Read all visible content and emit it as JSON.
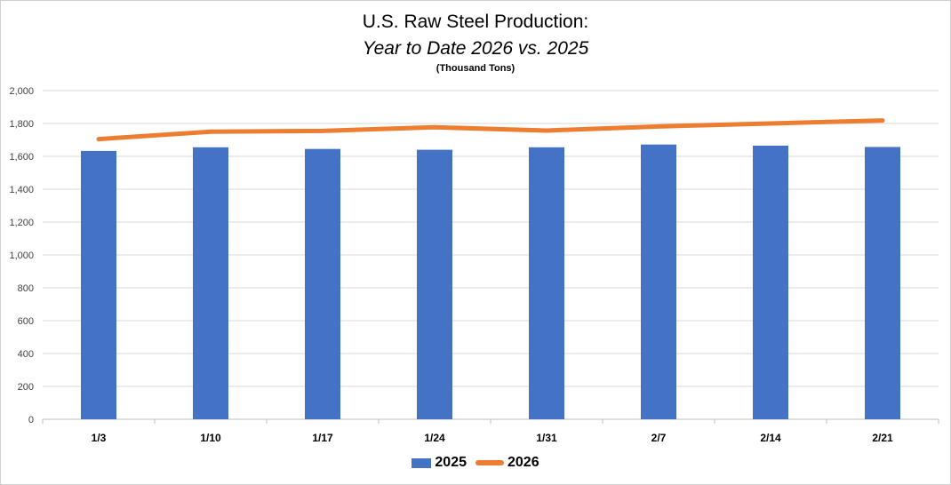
{
  "chart_data": {
    "type": "bar",
    "title": "U.S. Raw Steel Production:",
    "subtitle": "Year to Date 2026 vs. 2025",
    "unit_label": "(Thousand Tons)",
    "categories": [
      "1/3",
      "1/10",
      "1/17",
      "1/24",
      "1/31",
      "2/7",
      "2/14",
      "2/21"
    ],
    "ylim": [
      0,
      2000
    ],
    "yticks": [
      0,
      200,
      400,
      600,
      800,
      1000,
      1200,
      1400,
      1600,
      1800,
      2000
    ],
    "ytick_labels": [
      "0",
      "200",
      "400",
      "600",
      "800",
      "1,000",
      "1,200",
      "1,400",
      "1,600",
      "1,800",
      "2,000"
    ],
    "grid": true,
    "legend_position": "bottom",
    "series": [
      {
        "name": "2025",
        "kind": "bar",
        "color": "#4472C4",
        "values": [
          1633,
          1655,
          1645,
          1640,
          1655,
          1672,
          1665,
          1657
        ]
      },
      {
        "name": "2026",
        "kind": "line",
        "color": "#ED7D31",
        "values": [
          1705,
          1750,
          1755,
          1777,
          1757,
          1782,
          1800,
          1818
        ]
      }
    ]
  }
}
